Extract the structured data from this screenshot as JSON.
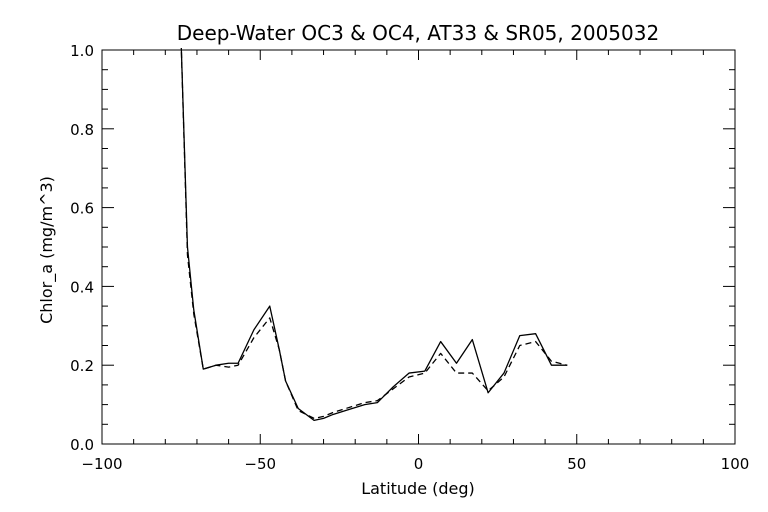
{
  "chart_data": {
    "type": "line",
    "title": "Deep-Water OC3 & OC4, AT33 & SR05, 2005032",
    "xlabel": "Latitude (deg)",
    "ylabel": "Chlor_a (mg/m^3)",
    "xlim": [
      -100,
      100
    ],
    "ylim": [
      0.0,
      1.0
    ],
    "x_ticks": [
      -100,
      -50,
      0,
      50,
      100
    ],
    "x_tick_labels": [
      "−100",
      "−50",
      "0",
      "50",
      "100"
    ],
    "y_ticks": [
      0.0,
      0.2,
      0.4,
      0.6,
      0.8,
      1.0
    ],
    "y_tick_labels": [
      "0.0",
      "0.2",
      "0.4",
      "0.6",
      "0.8",
      "1.0"
    ],
    "x_minor_step": 10,
    "y_minor_step": 0.05,
    "grid": false,
    "legend": "none",
    "series": [
      {
        "style": "solid",
        "color": "#000000",
        "x": [
          -75,
          -73,
          -71,
          -68,
          -64,
          -60,
          -57,
          -52,
          -47,
          -44,
          -42,
          -38,
          -33,
          -30,
          -27,
          -23,
          -17,
          -13,
          -8,
          -3,
          2,
          7,
          12,
          17,
          22,
          27,
          32,
          37,
          42,
          47
        ],
        "y": [
          1.02,
          0.5,
          0.34,
          0.19,
          0.2,
          0.205,
          0.205,
          0.29,
          0.35,
          0.24,
          0.16,
          0.09,
          0.06,
          0.065,
          0.075,
          0.085,
          0.1,
          0.105,
          0.145,
          0.18,
          0.185,
          0.26,
          0.205,
          0.265,
          0.13,
          0.18,
          0.275,
          0.28,
          0.2,
          0.2
        ]
      },
      {
        "style": "dashed",
        "color": "#000000",
        "x": [
          -75,
          -73,
          -71,
          -68,
          -64,
          -60,
          -57,
          -52,
          -47,
          -44,
          -42,
          -38,
          -33,
          -30,
          -27,
          -23,
          -17,
          -13,
          -8,
          -3,
          2,
          7,
          12,
          17,
          22,
          27,
          32,
          37,
          42,
          47
        ],
        "y": [
          1.02,
          0.48,
          0.33,
          0.19,
          0.2,
          0.195,
          0.2,
          0.27,
          0.32,
          0.24,
          0.16,
          0.085,
          0.065,
          0.07,
          0.08,
          0.09,
          0.105,
          0.11,
          0.14,
          0.17,
          0.18,
          0.23,
          0.18,
          0.18,
          0.135,
          0.17,
          0.25,
          0.26,
          0.21,
          0.2
        ]
      }
    ]
  }
}
